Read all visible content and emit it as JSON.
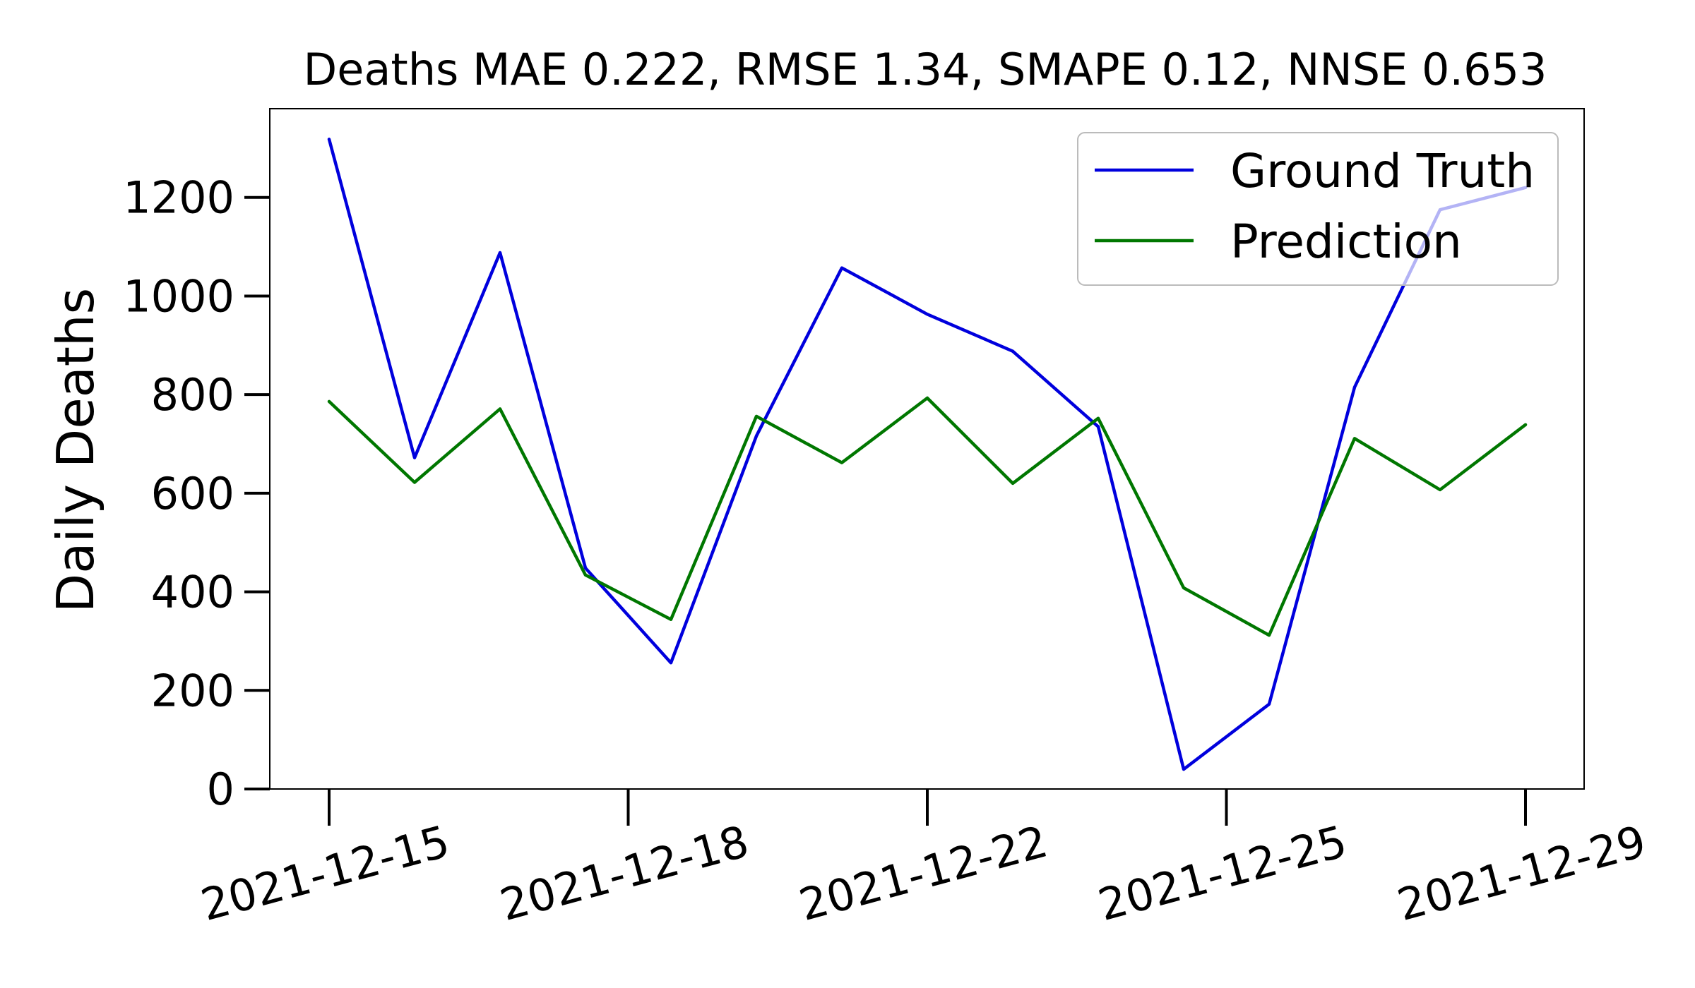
{
  "chart_data": {
    "type": "line",
    "title": "Deaths MAE 0.222, RMSE 1.34, SMAPE 0.12, NNSE 0.653",
    "xlabel": "",
    "ylabel": "Daily Deaths",
    "x": [
      "2021-12-15",
      "2021-12-16",
      "2021-12-17",
      "2021-12-18",
      "2021-12-19",
      "2021-12-20",
      "2021-12-21",
      "2021-12-22",
      "2021-12-23",
      "2021-12-24",
      "2021-12-25",
      "2021-12-26",
      "2021-12-27",
      "2021-12-28",
      "2021-12-29"
    ],
    "x_ticks": [
      "2021-12-15",
      "2021-12-18",
      "2021-12-22",
      "2021-12-25",
      "2021-12-29"
    ],
    "x_tick_positions": [
      "2021-12-15",
      "2021-12-18.5",
      "2021-12-22",
      "2021-12-25.5",
      "2021-12-29"
    ],
    "y_ticks": [
      0,
      200,
      400,
      600,
      800,
      1000,
      1200
    ],
    "ylim": [
      0,
      1380
    ],
    "legend_position": "top-right",
    "series": [
      {
        "name": "Ground Truth",
        "color": "#0000dd",
        "values": [
          1318,
          672,
          1088,
          448,
          256,
          716,
          1057,
          963,
          888,
          735,
          40,
          172,
          815,
          1175,
          1220
        ]
      },
      {
        "name": "Prediction",
        "color": "#007700",
        "values": [
          786,
          622,
          771,
          434,
          344,
          756,
          662,
          793,
          620,
          752,
          408,
          312,
          711,
          607,
          739
        ]
      }
    ]
  }
}
